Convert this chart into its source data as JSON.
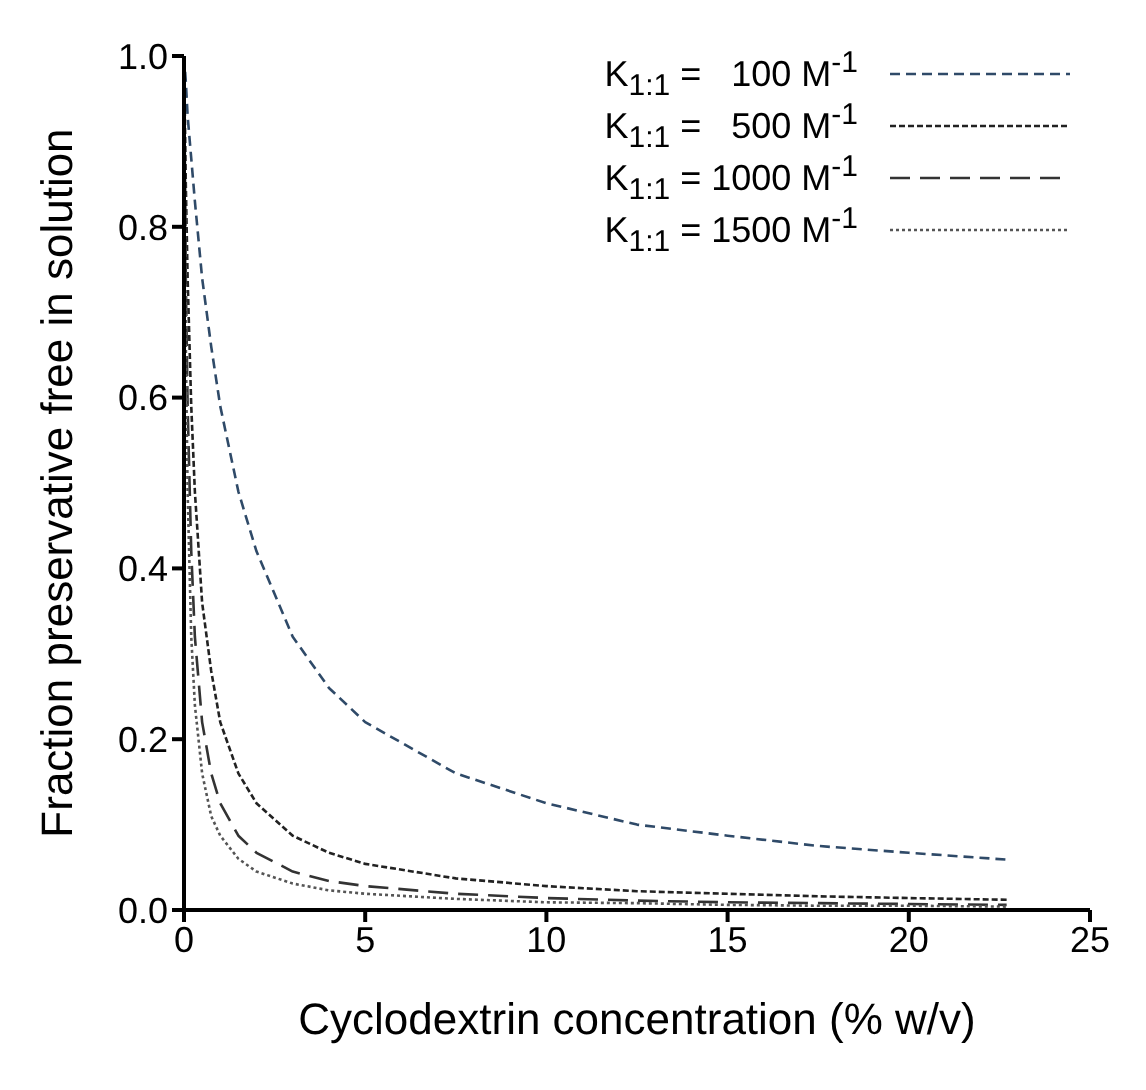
{
  "chart_data": {
    "type": "line",
    "xlabel": "Cyclodextrin concentration (% w/v)",
    "ylabel": "Fraction preservative free in solution",
    "x": [
      0,
      0.05,
      0.1,
      0.2,
      0.3,
      0.5,
      0.75,
      1,
      1.5,
      2,
      3,
      4,
      5,
      7.5,
      10,
      12.5,
      15,
      17.5,
      20,
      22.7
    ],
    "series": [
      {
        "name": "K$_{1:1}$ =   100 M$^{-1}$",
        "color": "#2f4a68",
        "line_style": "dashed",
        "values": [
          1,
          0.97,
          0.93,
          0.88,
          0.83,
          0.74,
          0.66,
          0.59,
          0.49,
          0.42,
          0.32,
          0.26,
          0.22,
          0.16,
          0.125,
          0.1,
          0.087,
          0.075,
          0.067,
          0.059
        ]
      },
      {
        "name": "K$_{1:1}$ =   500 M$^{-1}$",
        "color": "#222222",
        "line_style": "dotted",
        "values": [
          1,
          0.85,
          0.74,
          0.59,
          0.49,
          0.36,
          0.28,
          0.22,
          0.16,
          0.125,
          0.087,
          0.067,
          0.054,
          0.037,
          0.028,
          0.022,
          0.019,
          0.016,
          0.014,
          0.012
        ]
      },
      {
        "name": "K$_{1:1}$ = 1000 M$^{-1}$",
        "color": "#333333",
        "line_style": "dashed",
        "values": [
          1,
          0.74,
          0.59,
          0.42,
          0.32,
          0.22,
          0.16,
          0.125,
          0.087,
          0.067,
          0.045,
          0.034,
          0.028,
          0.019,
          0.014,
          0.011,
          0.009,
          0.008,
          0.007,
          0.006
        ]
      },
      {
        "name": "K$_{1:1}$ = 1500 M$^{-1}$",
        "color": "#555555",
        "line_style": "dotted",
        "values": [
          1,
          0.66,
          0.49,
          0.32,
          0.24,
          0.16,
          0.11,
          0.087,
          0.06,
          0.045,
          0.031,
          0.023,
          0.019,
          0.013,
          0.009,
          0.008,
          0.006,
          0.005,
          0.005,
          0.004
        ]
      }
    ],
    "xlim": [
      0,
      25
    ],
    "xticks": [
      0,
      5,
      10,
      15,
      20,
      25
    ],
    "ylim": [
      0,
      1.0
    ],
    "yticks": [
      {
        "value": 0,
        "label": "0.0"
      },
      0.2,
      0.4,
      0.6,
      0.8,
      {
        "value": 1,
        "label": "1.0"
      }
    ],
    "grid": false,
    "legend": "top right",
    "marker": "none"
  }
}
